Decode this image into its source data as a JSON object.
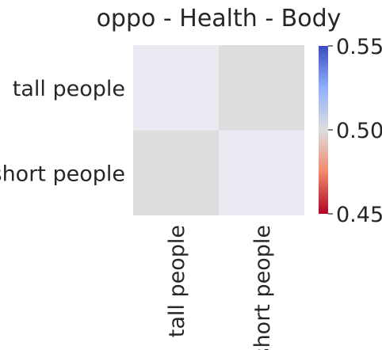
{
  "chart_data": {
    "type": "heatmap",
    "title": "oppo - Health - Body",
    "xlabel": "",
    "ylabel": "",
    "row_labels": [
      "tall people",
      "short people"
    ],
    "col_labels": [
      "tall people",
      "short people"
    ],
    "values": [
      [
        null,
        0.5
      ],
      [
        0.5,
        null
      ]
    ],
    "colormap": "coolwarm",
    "vmin": 0.45,
    "vmax": 0.55,
    "colorbar_ticks": [
      "0.55",
      "0.50",
      "0.45"
    ],
    "missing_color": "#eaeaf2",
    "colorbar_stops": [
      "#b40426",
      "#f08a6c",
      "#dddddd",
      "#8fb1fe",
      "#3b4cc0"
    ]
  }
}
